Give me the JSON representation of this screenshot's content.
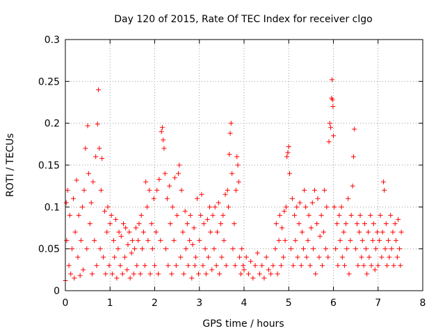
{
  "chart_data": {
    "type": "scatter",
    "title": "Day 120 of 2015, Rate Of TEC Index for receiver clgo",
    "xlabel": "GPS time / hours",
    "ylabel": "ROTI / TECUs",
    "xlim": [
      0,
      8
    ],
    "ylim": [
      0,
      0.3
    ],
    "xticks": [
      0,
      1,
      2,
      3,
      4,
      5,
      6,
      7,
      8
    ],
    "yticks": [
      0,
      0.05,
      0.1,
      0.15,
      0.2,
      0.25,
      0.3
    ],
    "xtick_labels": [
      "0",
      "1",
      "2",
      "3",
      "4",
      "5",
      "6",
      "7",
      "8"
    ],
    "ytick_labels": [
      "0",
      "0.05",
      "0.1",
      "0.15",
      "0.2",
      "0.25",
      "0.3"
    ],
    "grid": true,
    "marker": "plus",
    "color": "#ff0000",
    "series": [
      {
        "name": "ROTI",
        "points": [
          [
            0.0,
            0.012
          ],
          [
            0.02,
            0.105
          ],
          [
            0.03,
            0.06
          ],
          [
            0.05,
            0.12
          ],
          [
            0.08,
            0.03
          ],
          [
            0.1,
            0.09
          ],
          [
            0.12,
            0.02
          ],
          [
            0.15,
            0.05
          ],
          [
            0.18,
            0.11
          ],
          [
            0.2,
            0.015
          ],
          [
            0.22,
            0.07
          ],
          [
            0.25,
            0.132
          ],
          [
            0.28,
            0.04
          ],
          [
            0.3,
            0.09
          ],
          [
            0.33,
            0.018
          ],
          [
            0.35,
            0.06
          ],
          [
            0.38,
            0.1
          ],
          [
            0.4,
            0.025
          ],
          [
            0.42,
            0.12
          ],
          [
            0.45,
            0.17
          ],
          [
            0.48,
            0.05
          ],
          [
            0.5,
            0.197
          ],
          [
            0.52,
            0.14
          ],
          [
            0.55,
            0.08
          ],
          [
            0.58,
            0.105
          ],
          [
            0.6,
            0.02
          ],
          [
            0.62,
            0.13
          ],
          [
            0.65,
            0.06
          ],
          [
            0.68,
            0.16
          ],
          [
            0.7,
            0.03
          ],
          [
            0.72,
            0.199
          ],
          [
            0.74,
            0.24
          ],
          [
            0.76,
            0.17
          ],
          [
            0.78,
            0.05
          ],
          [
            0.8,
            0.12
          ],
          [
            0.82,
            0.158
          ],
          [
            0.85,
            0.04
          ],
          [
            0.88,
            0.095
          ],
          [
            0.9,
            0.02
          ],
          [
            0.93,
            0.07
          ],
          [
            0.95,
            0.1
          ],
          [
            0.98,
            0.03
          ],
          [
            1.0,
            0.08
          ],
          [
            1.03,
            0.09
          ],
          [
            1.05,
            0.02
          ],
          [
            1.08,
            0.06
          ],
          [
            1.1,
            0.04
          ],
          [
            1.13,
            0.085
          ],
          [
            1.15,
            0.015
          ],
          [
            1.18,
            0.05
          ],
          [
            1.2,
            0.07
          ],
          [
            1.23,
            0.03
          ],
          [
            1.25,
            0.065
          ],
          [
            1.28,
            0.02
          ],
          [
            1.3,
            0.08
          ],
          [
            1.33,
            0.04
          ],
          [
            1.35,
            0.075
          ],
          [
            1.38,
            0.025
          ],
          [
            1.4,
            0.055
          ],
          [
            1.43,
            0.07
          ],
          [
            1.45,
            0.015
          ],
          [
            1.48,
            0.045
          ],
          [
            1.5,
            0.06
          ],
          [
            1.53,
            0.02
          ],
          [
            1.55,
            0.05
          ],
          [
            1.58,
            0.075
          ],
          [
            1.6,
            0.03
          ],
          [
            1.63,
            0.06
          ],
          [
            1.65,
            0.08
          ],
          [
            1.68,
            0.02
          ],
          [
            1.7,
            0.09
          ],
          [
            1.72,
            0.05
          ],
          [
            1.75,
            0.07
          ],
          [
            1.78,
            0.03
          ],
          [
            1.8,
            0.13
          ],
          [
            1.83,
            0.1
          ],
          [
            1.85,
            0.06
          ],
          [
            1.88,
            0.12
          ],
          [
            1.9,
            0.02
          ],
          [
            1.93,
            0.08
          ],
          [
            1.95,
            0.05
          ],
          [
            1.98,
            0.11
          ],
          [
            2.0,
            0.03
          ],
          [
            2.03,
            0.07
          ],
          [
            2.05,
            0.12
          ],
          [
            2.08,
            0.02
          ],
          [
            2.1,
            0.133
          ],
          [
            2.13,
            0.06
          ],
          [
            2.15,
            0.19
          ],
          [
            2.17,
            0.195
          ],
          [
            2.19,
            0.18
          ],
          [
            2.21,
            0.17
          ],
          [
            2.23,
            0.14
          ],
          [
            2.25,
            0.05
          ],
          [
            2.28,
            0.11
          ],
          [
            2.3,
            0.03
          ],
          [
            2.33,
            0.125
          ],
          [
            2.35,
            0.08
          ],
          [
            2.38,
            0.02
          ],
          [
            2.4,
            0.1
          ],
          [
            2.43,
            0.06
          ],
          [
            2.45,
            0.135
          ],
          [
            2.48,
            0.03
          ],
          [
            2.5,
            0.09
          ],
          [
            2.53,
            0.14
          ],
          [
            2.55,
            0.15
          ],
          [
            2.58,
            0.04
          ],
          [
            2.6,
            0.12
          ],
          [
            2.63,
            0.07
          ],
          [
            2.65,
            0.02
          ],
          [
            2.68,
            0.095
          ],
          [
            2.7,
            0.05
          ],
          [
            2.73,
            0.08
          ],
          [
            2.75,
            0.03
          ],
          [
            2.78,
            0.06
          ],
          [
            2.8,
            0.09
          ],
          [
            2.83,
            0.015
          ],
          [
            2.85,
            0.055
          ],
          [
            2.88,
            0.075
          ],
          [
            2.9,
            0.03
          ],
          [
            2.92,
            0.04
          ],
          [
            2.95,
            0.11
          ],
          [
            2.98,
            0.02
          ],
          [
            3.0,
            0.06
          ],
          [
            3.03,
            0.09
          ],
          [
            3.05,
            0.115
          ],
          [
            3.08,
            0.03
          ],
          [
            3.1,
            0.08
          ],
          [
            3.13,
            0.05
          ],
          [
            3.15,
            0.02
          ],
          [
            3.18,
            0.085
          ],
          [
            3.2,
            0.04
          ],
          [
            3.23,
            0.1
          ],
          [
            3.25,
            0.07
          ],
          [
            3.28,
            0.025
          ],
          [
            3.3,
            0.09
          ],
          [
            3.33,
            0.05
          ],
          [
            3.35,
            0.1
          ],
          [
            3.38,
            0.03
          ],
          [
            3.4,
            0.07
          ],
          [
            3.43,
            0.105
          ],
          [
            3.45,
            0.02
          ],
          [
            3.48,
            0.08
          ],
          [
            3.5,
            0.04
          ],
          [
            3.53,
            0.09
          ],
          [
            3.55,
            0.06
          ],
          [
            3.58,
            0.115
          ],
          [
            3.6,
            0.03
          ],
          [
            3.63,
            0.12
          ],
          [
            3.65,
            0.1
          ],
          [
            3.67,
            0.163
          ],
          [
            3.69,
            0.188
          ],
          [
            3.71,
            0.2
          ],
          [
            3.73,
            0.14
          ],
          [
            3.75,
            0.05
          ],
          [
            3.78,
            0.08
          ],
          [
            3.8,
            0.03
          ],
          [
            3.82,
            0.12
          ],
          [
            3.84,
            0.16
          ],
          [
            3.86,
            0.15
          ],
          [
            3.88,
            0.13
          ],
          [
            3.9,
            0.04
          ],
          [
            3.93,
            0.02
          ],
          [
            3.95,
            0.05
          ],
          [
            3.98,
            0.03
          ],
          [
            4.0,
            0.025
          ],
          [
            4.05,
            0.04
          ],
          [
            4.1,
            0.02
          ],
          [
            4.15,
            0.035
          ],
          [
            4.2,
            0.015
          ],
          [
            4.25,
            0.03
          ],
          [
            4.3,
            0.045
          ],
          [
            4.35,
            0.02
          ],
          [
            4.4,
            0.03
          ],
          [
            4.45,
            0.015
          ],
          [
            4.5,
            0.04
          ],
          [
            4.55,
            0.025
          ],
          [
            4.6,
            0.02
          ],
          [
            4.65,
            0.03
          ],
          [
            4.7,
            0.05
          ],
          [
            4.72,
            0.08
          ],
          [
            4.75,
            0.02
          ],
          [
            4.78,
            0.06
          ],
          [
            4.8,
            0.09
          ],
          [
            4.83,
            0.03
          ],
          [
            4.85,
            0.075
          ],
          [
            4.88,
            0.04
          ],
          [
            4.9,
            0.095
          ],
          [
            4.92,
            0.06
          ],
          [
            4.94,
            0.1
          ],
          [
            4.96,
            0.16
          ],
          [
            4.98,
            0.165
          ],
          [
            5.0,
            0.172
          ],
          [
            5.02,
            0.14
          ],
          [
            5.05,
            0.05
          ],
          [
            5.08,
            0.11
          ],
          [
            5.1,
            0.03
          ],
          [
            5.13,
            0.09
          ],
          [
            5.15,
            0.06
          ],
          [
            5.18,
            0.1
          ],
          [
            5.2,
            0.04
          ],
          [
            5.23,
            0.08
          ],
          [
            5.25,
            0.105
          ],
          [
            5.28,
            0.03
          ],
          [
            5.3,
            0.07
          ],
          [
            5.33,
            0.05
          ],
          [
            5.35,
            0.12
          ],
          [
            5.38,
            0.1
          ],
          [
            5.4,
            0.04
          ],
          [
            5.43,
            0.06
          ],
          [
            5.45,
            0.09
          ],
          [
            5.48,
            0.03
          ],
          [
            5.5,
            0.075
          ],
          [
            5.53,
            0.105
          ],
          [
            5.55,
            0.05
          ],
          [
            5.58,
            0.12
          ],
          [
            5.6,
            0.02
          ],
          [
            5.63,
            0.08
          ],
          [
            5.65,
            0.11
          ],
          [
            5.68,
            0.04
          ],
          [
            5.7,
            0.065
          ],
          [
            5.73,
            0.09
          ],
          [
            5.75,
            0.03
          ],
          [
            5.78,
            0.07
          ],
          [
            5.8,
            0.12
          ],
          [
            5.83,
            0.05
          ],
          [
            5.85,
            0.1
          ],
          [
            5.88,
            0.04
          ],
          [
            5.9,
            0.178
          ],
          [
            5.92,
            0.2
          ],
          [
            5.94,
            0.195
          ],
          [
            5.96,
            0.23
          ],
          [
            5.97,
            0.252
          ],
          [
            5.98,
            0.228
          ],
          [
            5.99,
            0.22
          ],
          [
            6.0,
            0.185
          ],
          [
            6.02,
            0.1
          ],
          [
            6.05,
            0.05
          ],
          [
            6.08,
            0.08
          ],
          [
            6.1,
            0.03
          ],
          [
            6.13,
            0.09
          ],
          [
            6.15,
            0.06
          ],
          [
            6.18,
            0.1
          ],
          [
            6.2,
            0.04
          ],
          [
            6.23,
            0.07
          ],
          [
            6.25,
            0.03
          ],
          [
            6.28,
            0.08
          ],
          [
            6.3,
            0.05
          ],
          [
            6.33,
            0.11
          ],
          [
            6.35,
            0.02
          ],
          [
            6.38,
            0.06
          ],
          [
            6.4,
            0.09
          ],
          [
            6.43,
            0.125
          ],
          [
            6.45,
            0.16
          ],
          [
            6.47,
            0.193
          ],
          [
            6.5,
            0.05
          ],
          [
            6.53,
            0.08
          ],
          [
            6.55,
            0.03
          ],
          [
            6.58,
            0.07
          ],
          [
            6.6,
            0.09
          ],
          [
            6.63,
            0.04
          ],
          [
            6.65,
            0.06
          ],
          [
            6.68,
            0.03
          ],
          [
            6.7,
            0.08
          ],
          [
            6.73,
            0.05
          ],
          [
            6.75,
            0.02
          ],
          [
            6.78,
            0.07
          ],
          [
            6.8,
            0.04
          ],
          [
            6.83,
            0.09
          ],
          [
            6.85,
            0.03
          ],
          [
            6.88,
            0.06
          ],
          [
            6.9,
            0.08
          ],
          [
            6.93,
            0.025
          ],
          [
            6.95,
            0.05
          ],
          [
            6.98,
            0.07
          ],
          [
            7.0,
            0.03
          ],
          [
            7.03,
            0.06
          ],
          [
            7.05,
            0.09
          ],
          [
            7.08,
            0.04
          ],
          [
            7.1,
            0.07
          ],
          [
            7.12,
            0.13
          ],
          [
            7.14,
            0.12
          ],
          [
            7.16,
            0.05
          ],
          [
            7.18,
            0.08
          ],
          [
            7.2,
            0.03
          ],
          [
            7.23,
            0.06
          ],
          [
            7.25,
            0.04
          ],
          [
            7.28,
            0.09
          ],
          [
            7.3,
            0.05
          ],
          [
            7.33,
            0.07
          ],
          [
            7.35,
            0.03
          ],
          [
            7.38,
            0.08
          ],
          [
            7.4,
            0.06
          ],
          [
            7.43,
            0.04
          ],
          [
            7.45,
            0.085
          ],
          [
            7.48,
            0.05
          ],
          [
            7.5,
            0.03
          ],
          [
            7.52,
            0.07
          ]
        ]
      }
    ]
  }
}
